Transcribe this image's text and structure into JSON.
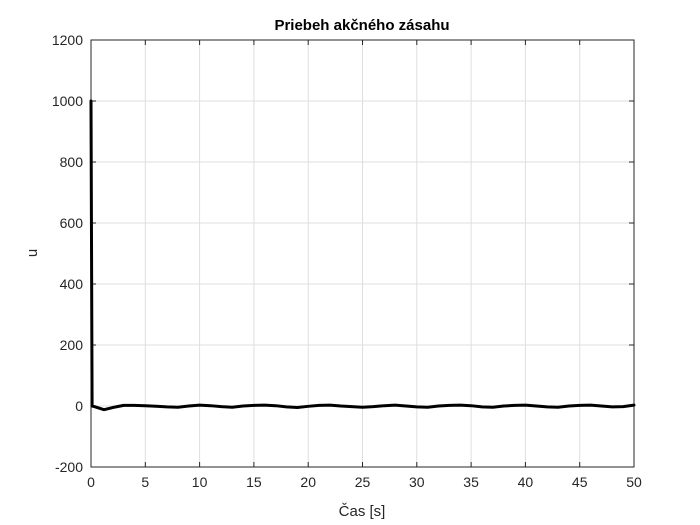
{
  "chart_data": {
    "type": "line",
    "title": "Priebeh akčného zásahu",
    "xlabel": "Čas [s]",
    "ylabel": "u",
    "xlim": [
      0,
      50
    ],
    "ylim": [
      -200,
      1200
    ],
    "xticks": [
      0,
      5,
      10,
      15,
      20,
      25,
      30,
      35,
      40,
      45,
      50
    ],
    "yticks": [
      -200,
      0,
      200,
      400,
      600,
      800,
      1000,
      1200
    ],
    "xtick_labels": [
      "0",
      "5",
      "10",
      "15",
      "20",
      "25",
      "30",
      "35",
      "40",
      "45",
      "50"
    ],
    "ytick_labels": [
      "-200",
      "0",
      "200",
      "400",
      "600",
      "800",
      "1000",
      "1200"
    ],
    "grid": true,
    "line_color": "#000000",
    "series": [
      {
        "x": [
          0,
          0.1,
          0.3,
          1.2,
          2,
          3,
          4,
          5,
          6,
          7,
          8,
          9,
          10,
          11,
          12,
          13,
          14,
          15,
          16,
          17,
          18,
          19,
          20,
          21,
          22,
          23,
          24,
          25,
          26,
          27,
          28,
          29,
          30,
          31,
          32,
          33,
          34,
          35,
          36,
          37,
          38,
          39,
          40,
          41,
          42,
          43,
          44,
          45,
          46,
          47,
          48,
          49,
          50
        ],
        "values": [
          1000,
          0,
          -2,
          -12,
          -5,
          2,
          2,
          1,
          -1,
          -3,
          -4,
          0,
          3,
          1,
          -2,
          -4,
          0,
          2,
          3,
          1,
          -3,
          -5,
          -1,
          2,
          3,
          0,
          -2,
          -4,
          -2,
          1,
          3,
          0,
          -3,
          -4,
          0,
          2,
          3,
          1,
          -3,
          -4,
          0,
          2,
          3,
          0,
          -3,
          -4,
          0,
          2,
          3,
          0,
          -3,
          -2,
          3
        ]
      }
    ]
  }
}
